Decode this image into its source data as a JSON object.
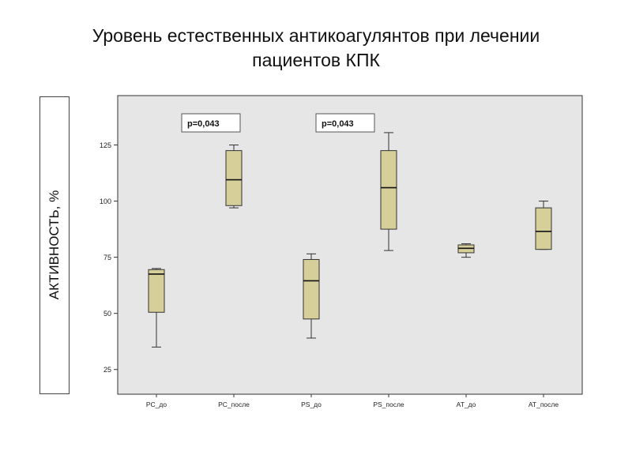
{
  "title_lines": [
    "Уровень естественных антикоагулянтов при лечении",
    "пациентов КПК"
  ],
  "ylabel": "АКТИВНОСТЬ, %",
  "annotations": [
    "p=0,043",
    "p=0,043"
  ],
  "colors": {
    "box_fill": "#d6cf9a",
    "plot_bg": "#e6e6e6",
    "stroke": "#333333"
  },
  "chart_data": {
    "type": "box",
    "title": "Уровень естественных антикоагулянтов при лечении пациентов КПК",
    "ylabel": "АКТИВНОСТЬ, %",
    "xlabel": "",
    "ylim": [
      14,
      147
    ],
    "yticks": [
      25,
      50,
      75,
      100,
      125
    ],
    "ytick_labels": [
      "25",
      "50",
      "75",
      "100",
      "125"
    ],
    "grid": false,
    "categories": [
      "PC_до",
      "PC_после",
      "PS_до",
      "PS_после",
      "AT_до",
      "AT_после"
    ],
    "boxes": [
      {
        "min": 35,
        "q1": 50.5,
        "median": 67.5,
        "q3": 69.5,
        "max": 70
      },
      {
        "min": 97,
        "q1": 98,
        "median": 109.5,
        "q3": 122.5,
        "max": 125
      },
      {
        "min": 39,
        "q1": 47.5,
        "median": 64.5,
        "q3": 74,
        "max": 76.5
      },
      {
        "min": 78,
        "q1": 87.5,
        "median": 106,
        "q3": 122.5,
        "max": 130.5
      },
      {
        "min": 75,
        "q1": 77,
        "median": 79,
        "q3": 80.5,
        "max": 81
      },
      {
        "min": 78.5,
        "q1": 78.5,
        "median": 86.5,
        "q3": 97,
        "max": 100
      }
    ],
    "annotations": [
      {
        "text": "p=0,043",
        "between": [
          "PC_до",
          "PC_после"
        ]
      },
      {
        "text": "p=0,043",
        "between": [
          "PS_до",
          "PS_после"
        ]
      }
    ]
  }
}
